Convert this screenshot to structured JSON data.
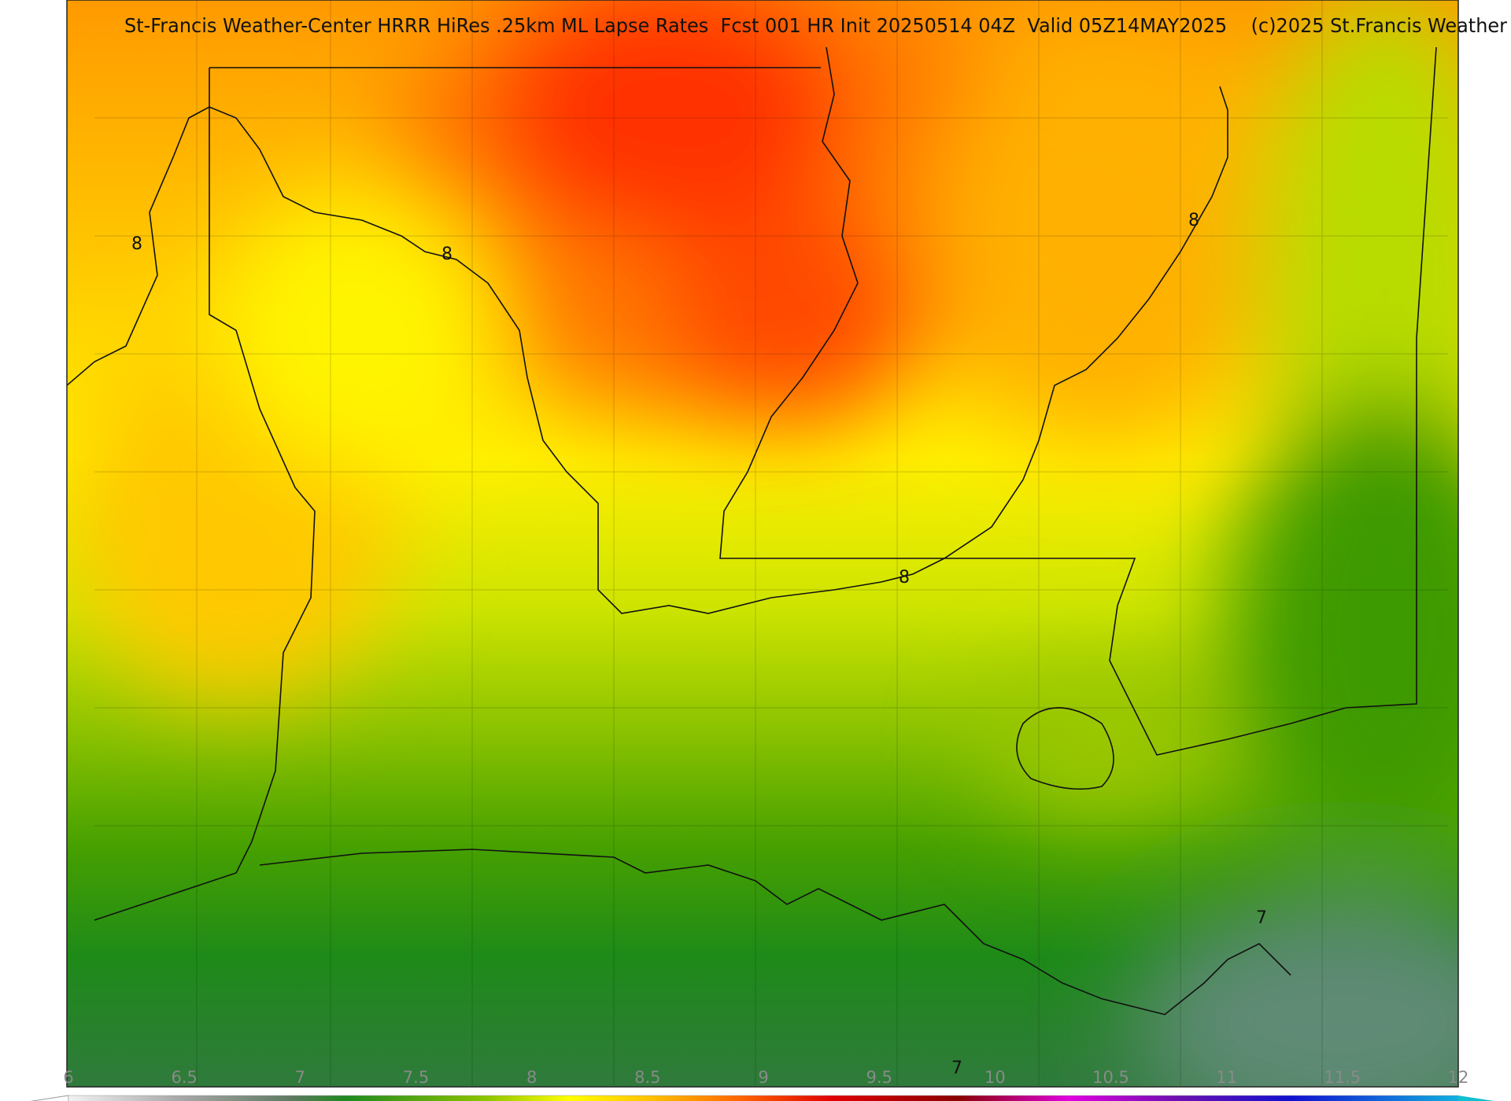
{
  "title": "St-Francis Weather-Center HRRR HiRes .25km ML Lapse Rates  Fcst 001 HR Init 20250514 04Z  Valid 05Z14MAY2025    (c)2025 St.Francis Weather",
  "contour_labels": [
    8,
    8,
    8,
    8,
    7,
    7
  ],
  "colorbar": {
    "range": [
      6,
      12
    ],
    "ticks": [
      6,
      6.5,
      7,
      7.5,
      8,
      8.5,
      9,
      9.5,
      10,
      10.5,
      11,
      11.5,
      12
    ]
  }
}
